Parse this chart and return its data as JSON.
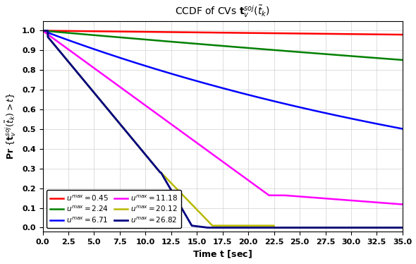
{
  "title": "CCDF of CVs $\\mathbf{t}_v^{soj}(\\tilde{t}_k)$",
  "xlabel": "Time $\\mathbf{t}$ [sec]",
  "ylabel": "Pr $\\{\\mathbf{t}_v^{soj}(\\tilde{t}_k) > t\\}$",
  "xlim": [
    0,
    35.0
  ],
  "ylim": [
    -0.02,
    1.05
  ],
  "xticks": [
    0.0,
    2.5,
    5.0,
    7.5,
    10.0,
    12.5,
    15.0,
    17.5,
    20.0,
    22.5,
    25.0,
    27.5,
    30.0,
    32.5,
    35.0
  ],
  "yticks": [
    0.0,
    0.1,
    0.2,
    0.3,
    0.4,
    0.5,
    0.6,
    0.7,
    0.8,
    0.9,
    1.0
  ],
  "series": [
    {
      "label": "$u^{max} = 0.45$",
      "color": "red",
      "lw": 1.8
    },
    {
      "label": "$u^{max} = 2.24$",
      "color": "green",
      "lw": 1.8
    },
    {
      "label": "$u^{max} = 6.71$",
      "color": "blue",
      "lw": 1.8
    },
    {
      "label": "$u^{max} = 11.18$",
      "color": "magenta",
      "lw": 1.8
    },
    {
      "label": "$u^{max} = 20.12$",
      "color": "#b8b800",
      "lw": 1.8
    },
    {
      "label": "$u^{max} = 26.82$",
      "color": "navy",
      "lw": 2.0
    }
  ],
  "figsize": [
    5.9,
    3.74
  ],
  "dpi": 100,
  "background": "white",
  "grid_color": "#cccccc",
  "title_fontsize": 10,
  "label_fontsize": 9,
  "tick_fontsize": 8,
  "legend_fontsize": 7.5
}
